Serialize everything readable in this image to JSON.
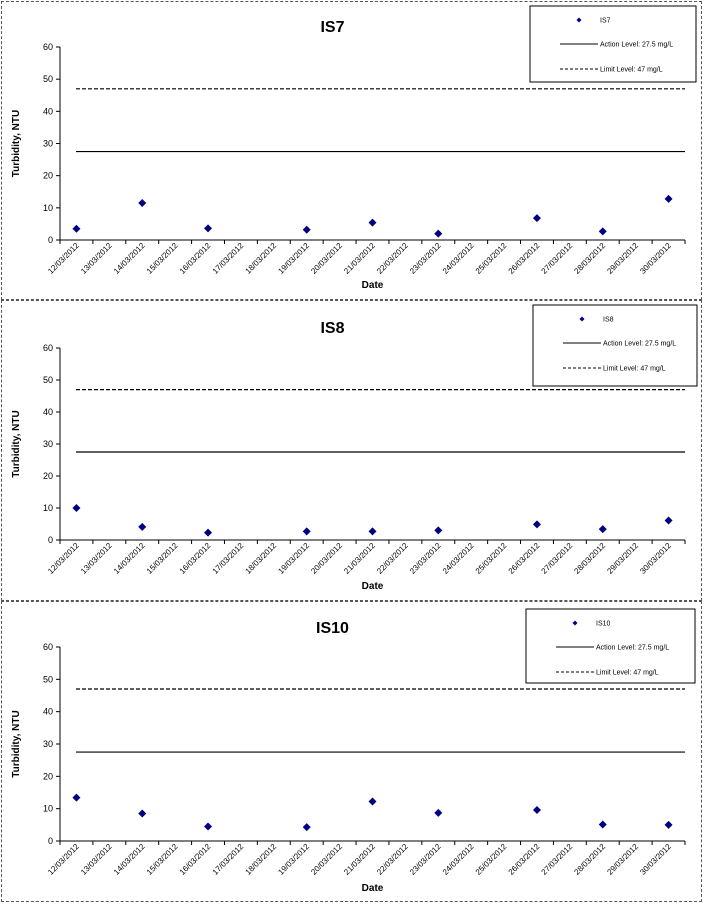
{
  "chart_data": [
    {
      "type": "scatter",
      "title": "IS7",
      "xlabel": "Date",
      "ylabel": "Turbidity, NTU",
      "ylim": [
        0,
        60
      ],
      "yticks": [
        0,
        10,
        20,
        30,
        40,
        50,
        60
      ],
      "x_tick_labels": [
        "12/03/2012",
        "13/03/2012",
        "14/03/2012",
        "15/03/2012",
        "16/03/2012",
        "17/03/2012",
        "18/03/2012",
        "19/03/2012",
        "20/03/2012",
        "21/03/2012",
        "22/03/2012",
        "23/03/2012",
        "24/03/2012",
        "25/03/2012",
        "26/03/2012",
        "27/03/2012",
        "28/03/2012",
        "29/03/2012",
        "30/03/2012"
      ],
      "series": [
        {
          "name": "IS7",
          "color": "#000080",
          "x": [
            "12/03/2012",
            "14/03/2012",
            "16/03/2012",
            "19/03/2012",
            "21/03/2012",
            "23/03/2012",
            "26/03/2012",
            "28/03/2012",
            "30/03/2012"
          ],
          "y": [
            3.5,
            11.5,
            3.6,
            3.2,
            5.4,
            2.0,
            6.8,
            2.7,
            12.8
          ]
        }
      ],
      "reference_lines": [
        {
          "label": "Action Level: 27.5 mg/L",
          "value": 27.5,
          "style": "solid"
        },
        {
          "label": "Limit Level: 47 mg/L",
          "value": 47,
          "style": "dashed"
        }
      ],
      "legend_position": "top-right",
      "grid": false
    },
    {
      "type": "scatter",
      "title": "IS8",
      "xlabel": "Date",
      "ylabel": "Turbidity, NTU",
      "ylim": [
        0,
        60
      ],
      "yticks": [
        0,
        10,
        20,
        30,
        40,
        50,
        60
      ],
      "x_tick_labels": [
        "12/03/2012",
        "13/03/2012",
        "14/03/2012",
        "15/03/2012",
        "16/03/2012",
        "17/03/2012",
        "18/03/2012",
        "19/03/2012",
        "20/03/2012",
        "21/03/2012",
        "22/03/2012",
        "23/03/2012",
        "24/03/2012",
        "25/03/2012",
        "26/03/2012",
        "27/03/2012",
        "28/03/2012",
        "29/03/2012",
        "30/03/2012"
      ],
      "series": [
        {
          "name": "IS8",
          "color": "#000080",
          "x": [
            "12/03/2012",
            "14/03/2012",
            "16/03/2012",
            "19/03/2012",
            "21/03/2012",
            "23/03/2012",
            "26/03/2012",
            "28/03/2012",
            "30/03/2012"
          ],
          "y": [
            10.0,
            4.1,
            2.3,
            2.7,
            2.7,
            3.0,
            4.9,
            3.4,
            6.1
          ]
        }
      ],
      "reference_lines": [
        {
          "label": "Action Level: 27.5 mg/L",
          "value": 27.5,
          "style": "solid"
        },
        {
          "label": "Limit Level: 47 mg/L",
          "value": 47,
          "style": "dashed"
        }
      ],
      "legend_position": "top-right",
      "grid": false
    },
    {
      "type": "scatter",
      "title": "IS10",
      "xlabel": "Date",
      "ylabel": "Turbidity, NTU",
      "ylim": [
        0,
        60
      ],
      "yticks": [
        0,
        10,
        20,
        30,
        40,
        50,
        60
      ],
      "x_tick_labels": [
        "12/03/2012",
        "13/03/2012",
        "14/03/2012",
        "15/03/2012",
        "16/03/2012",
        "17/03/2012",
        "18/03/2012",
        "19/03/2012",
        "20/03/2012",
        "21/03/2012",
        "22/03/2012",
        "23/03/2012",
        "24/03/2012",
        "25/03/2012",
        "26/03/2012",
        "27/03/2012",
        "28/03/2012",
        "29/03/2012",
        "30/03/2012"
      ],
      "series": [
        {
          "name": "IS10",
          "color": "#000080",
          "x": [
            "12/03/2012",
            "14/03/2012",
            "16/03/2012",
            "19/03/2012",
            "21/03/2012",
            "23/03/2012",
            "26/03/2012",
            "28/03/2012",
            "30/03/2012"
          ],
          "y": [
            13.4,
            8.5,
            4.5,
            4.3,
            12.2,
            8.7,
            9.6,
            5.1,
            5.0
          ]
        }
      ],
      "reference_lines": [
        {
          "label": "Action Level: 27.5 mg/L",
          "value": 27.5,
          "style": "solid"
        },
        {
          "label": "Limit Level: 47 mg/L",
          "value": 47,
          "style": "dashed"
        }
      ],
      "legend_position": "top-right",
      "grid": false
    }
  ]
}
